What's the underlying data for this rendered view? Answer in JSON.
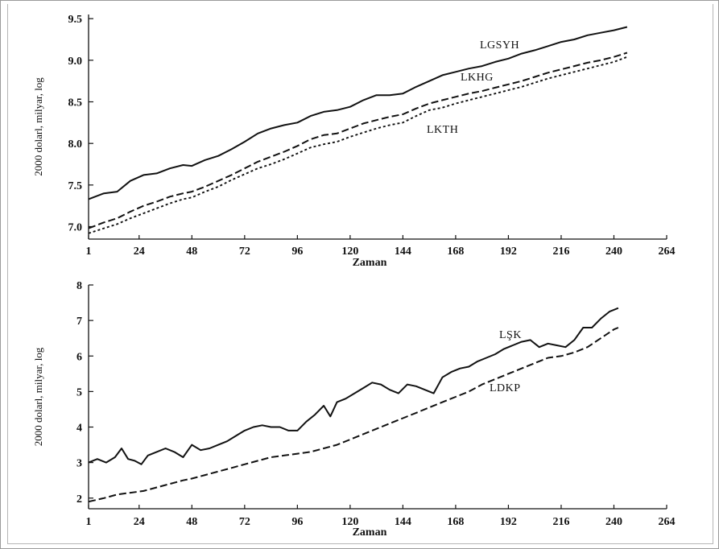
{
  "chart_data": [
    {
      "type": "line",
      "xlabel": "Zaman",
      "ylabel": "2000 dolarl, milyar, log",
      "xticks": [
        "1",
        "24",
        "48",
        "72",
        "96",
        "120",
        "144",
        "168",
        "192",
        "216",
        "240",
        "264"
      ],
      "xtick_values": [
        1,
        24,
        48,
        72,
        96,
        120,
        144,
        168,
        192,
        216,
        240,
        264
      ],
      "yticks": [
        "7.0",
        "7.5",
        "8.0",
        "8.5",
        "9.0",
        "9.5"
      ],
      "ytick_values": [
        7.0,
        7.5,
        8.0,
        8.5,
        9.0,
        9.5
      ],
      "xlim": [
        1,
        264
      ],
      "ylim": [
        6.85,
        9.55
      ],
      "grid": false,
      "series": [
        {
          "name": "LGSYH",
          "style": "solid",
          "x": [
            1,
            8,
            14,
            20,
            26,
            32,
            38,
            44,
            48,
            54,
            60,
            66,
            72,
            78,
            84,
            90,
            96,
            102,
            108,
            114,
            120,
            126,
            132,
            138,
            144,
            150,
            156,
            162,
            168,
            174,
            180,
            186,
            192,
            198,
            204,
            210,
            216,
            222,
            228,
            234,
            240,
            246
          ],
          "values": [
            7.33,
            7.4,
            7.42,
            7.55,
            7.62,
            7.64,
            7.7,
            7.74,
            7.73,
            7.8,
            7.85,
            7.93,
            8.02,
            8.12,
            8.18,
            8.22,
            8.25,
            8.33,
            8.38,
            8.4,
            8.44,
            8.52,
            8.58,
            8.58,
            8.6,
            8.68,
            8.75,
            8.82,
            8.86,
            8.9,
            8.93,
            8.98,
            9.02,
            9.08,
            9.12,
            9.17,
            9.22,
            9.25,
            9.3,
            9.33,
            9.36,
            9.4
          ]
        },
        {
          "name": "LKHG",
          "style": "dashed",
          "x": [
            1,
            8,
            14,
            20,
            26,
            32,
            38,
            44,
            48,
            54,
            60,
            66,
            72,
            78,
            84,
            90,
            96,
            102,
            108,
            114,
            120,
            126,
            132,
            138,
            144,
            150,
            156,
            162,
            168,
            174,
            180,
            186,
            192,
            198,
            204,
            210,
            216,
            222,
            228,
            234,
            240,
            246
          ],
          "values": [
            6.98,
            7.05,
            7.1,
            7.18,
            7.25,
            7.3,
            7.36,
            7.4,
            7.42,
            7.48,
            7.55,
            7.62,
            7.7,
            7.78,
            7.84,
            7.9,
            7.97,
            8.05,
            8.1,
            8.12,
            8.18,
            8.24,
            8.28,
            8.32,
            8.35,
            8.42,
            8.48,
            8.52,
            8.56,
            8.6,
            8.63,
            8.67,
            8.71,
            8.75,
            8.8,
            8.85,
            8.89,
            8.93,
            8.97,
            9.0,
            9.04,
            9.09
          ]
        },
        {
          "name": "LKTH",
          "style": "dotted",
          "x": [
            1,
            8,
            14,
            20,
            26,
            32,
            38,
            44,
            48,
            54,
            60,
            66,
            72,
            78,
            84,
            90,
            96,
            102,
            108,
            114,
            120,
            126,
            132,
            138,
            144,
            150,
            156,
            162,
            168,
            174,
            180,
            186,
            192,
            198,
            204,
            210,
            216,
            222,
            228,
            234,
            240,
            246
          ],
          "values": [
            6.92,
            6.98,
            7.03,
            7.1,
            7.16,
            7.22,
            7.28,
            7.33,
            7.35,
            7.42,
            7.48,
            7.56,
            7.63,
            7.7,
            7.75,
            7.81,
            7.88,
            7.95,
            7.99,
            8.02,
            8.08,
            8.13,
            8.18,
            8.22,
            8.25,
            8.33,
            8.4,
            8.43,
            8.48,
            8.52,
            8.56,
            8.6,
            8.64,
            8.68,
            8.73,
            8.78,
            8.82,
            8.86,
            8.9,
            8.94,
            8.98,
            9.04
          ]
        }
      ]
    },
    {
      "type": "line",
      "xlabel": "Zaman",
      "ylabel": "2000 dolarl, milyar, log",
      "xticks": [
        "1",
        "24",
        "48",
        "72",
        "96",
        "120",
        "144",
        "168",
        "192",
        "216",
        "240",
        "264"
      ],
      "xtick_values": [
        1,
        24,
        48,
        72,
        96,
        120,
        144,
        168,
        192,
        216,
        240,
        264
      ],
      "yticks": [
        "2",
        "3",
        "4",
        "5",
        "6",
        "7",
        "8"
      ],
      "ytick_values": [
        2,
        3,
        4,
        5,
        6,
        7,
        8
      ],
      "xlim": [
        1,
        264
      ],
      "ylim": [
        1.7,
        8.0
      ],
      "grid": false,
      "series": [
        {
          "name": "LŞK",
          "style": "solid",
          "x": [
            1,
            5,
            9,
            13,
            16,
            19,
            22,
            25,
            28,
            32,
            36,
            40,
            44,
            48,
            52,
            56,
            60,
            64,
            68,
            72,
            76,
            80,
            84,
            88,
            92,
            96,
            100,
            104,
            108,
            111,
            114,
            118,
            122,
            126,
            130,
            134,
            138,
            142,
            146,
            150,
            154,
            158,
            162,
            166,
            170,
            174,
            178,
            182,
            186,
            190,
            194,
            198,
            202,
            206,
            210,
            214,
            218,
            222,
            226,
            230,
            234,
            238,
            242
          ],
          "values": [
            3.0,
            3.1,
            3.0,
            3.15,
            3.4,
            3.1,
            3.05,
            2.95,
            3.2,
            3.3,
            3.4,
            3.3,
            3.15,
            3.5,
            3.35,
            3.4,
            3.5,
            3.6,
            3.75,
            3.9,
            4.0,
            4.05,
            4.0,
            4.0,
            3.9,
            3.9,
            4.15,
            4.35,
            4.6,
            4.3,
            4.7,
            4.8,
            4.95,
            5.1,
            5.25,
            5.2,
            5.05,
            4.95,
            5.2,
            5.15,
            5.05,
            4.95,
            5.4,
            5.55,
            5.65,
            5.7,
            5.85,
            5.95,
            6.05,
            6.2,
            6.3,
            6.4,
            6.45,
            6.25,
            6.35,
            6.3,
            6.25,
            6.45,
            6.8,
            6.8,
            7.05,
            7.25,
            7.35
          ]
        },
        {
          "name": "LDKP",
          "style": "dashed",
          "x": [
            1,
            8,
            14,
            20,
            26,
            32,
            38,
            44,
            48,
            54,
            60,
            66,
            72,
            78,
            84,
            90,
            96,
            102,
            108,
            114,
            120,
            126,
            132,
            138,
            144,
            150,
            156,
            162,
            168,
            174,
            180,
            186,
            192,
            198,
            204,
            210,
            216,
            222,
            228,
            234,
            240,
            242
          ],
          "values": [
            1.9,
            2.0,
            2.1,
            2.15,
            2.2,
            2.3,
            2.4,
            2.5,
            2.55,
            2.65,
            2.75,
            2.85,
            2.95,
            3.05,
            3.15,
            3.2,
            3.25,
            3.3,
            3.4,
            3.5,
            3.65,
            3.8,
            3.95,
            4.1,
            4.25,
            4.4,
            4.55,
            4.7,
            4.85,
            5.0,
            5.2,
            5.35,
            5.5,
            5.65,
            5.8,
            5.95,
            6.0,
            6.1,
            6.25,
            6.5,
            6.75,
            6.8
          ]
        }
      ]
    }
  ]
}
